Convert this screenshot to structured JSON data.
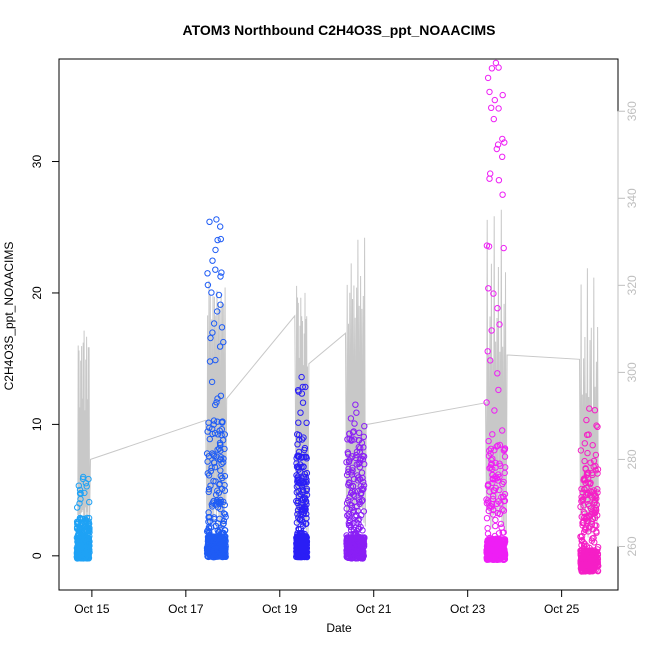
{
  "chart_data": {
    "type": "scatter",
    "title": "ATOM3 Northbound C2H4O3S_ppt_NOAACIMS",
    "xlabel": "Date",
    "ylabel": "C2H4O3S_ppt_NOAACIMS",
    "x_ticks": [
      "Oct 15",
      "Oct 17",
      "Oct 19",
      "Oct 21",
      "Oct 23",
      "Oct 25"
    ],
    "x_tick_days": [
      15,
      17,
      19,
      21,
      23,
      25
    ],
    "xlim_days": [
      14.3,
      26.2
    ],
    "y_left_ticks": [
      0,
      10,
      20,
      30
    ],
    "y_left_tick_labels": [
      "0",
      "10",
      "20",
      "30"
    ],
    "ylim_left": [
      -2.6,
      37.8
    ],
    "y_right_ticks": [
      260,
      280,
      300,
      320,
      340,
      360
    ],
    "y_right_tick_labels": [
      "260",
      "280",
      "300",
      "320",
      "340",
      "360"
    ],
    "ylim_right": [
      250,
      372
    ],
    "scatter_clusters": [
      {
        "day_start": 14.68,
        "day_end": 14.95,
        "color": "#1fa2f5",
        "max": 6.0,
        "min": -0.2,
        "scale": 0.8
      },
      {
        "day_start": 17.45,
        "day_end": 17.85,
        "color": "#1f5cf5",
        "max": 25.6,
        "min": -0.1,
        "scale": 2.6
      },
      {
        "day_start": 19.35,
        "day_end": 19.58,
        "color": "#2b1ff5",
        "max": 13.6,
        "min": -0.1,
        "scale": 2.0
      },
      {
        "day_start": 20.42,
        "day_end": 20.8,
        "color": "#8a1ff5",
        "max": 11.5,
        "min": -0.2,
        "scale": 2.4
      },
      {
        "day_start": 23.4,
        "day_end": 23.8,
        "color": "#ee1ff5",
        "max": 37.5,
        "min": -0.3,
        "scale": 2.2
      },
      {
        "day_start": 25.4,
        "day_end": 25.78,
        "color": "#f51fc6",
        "max": 11.2,
        "min": -1.2,
        "scale": 2.0
      }
    ],
    "series_color": "#c8c8c8",
    "grid": false
  }
}
